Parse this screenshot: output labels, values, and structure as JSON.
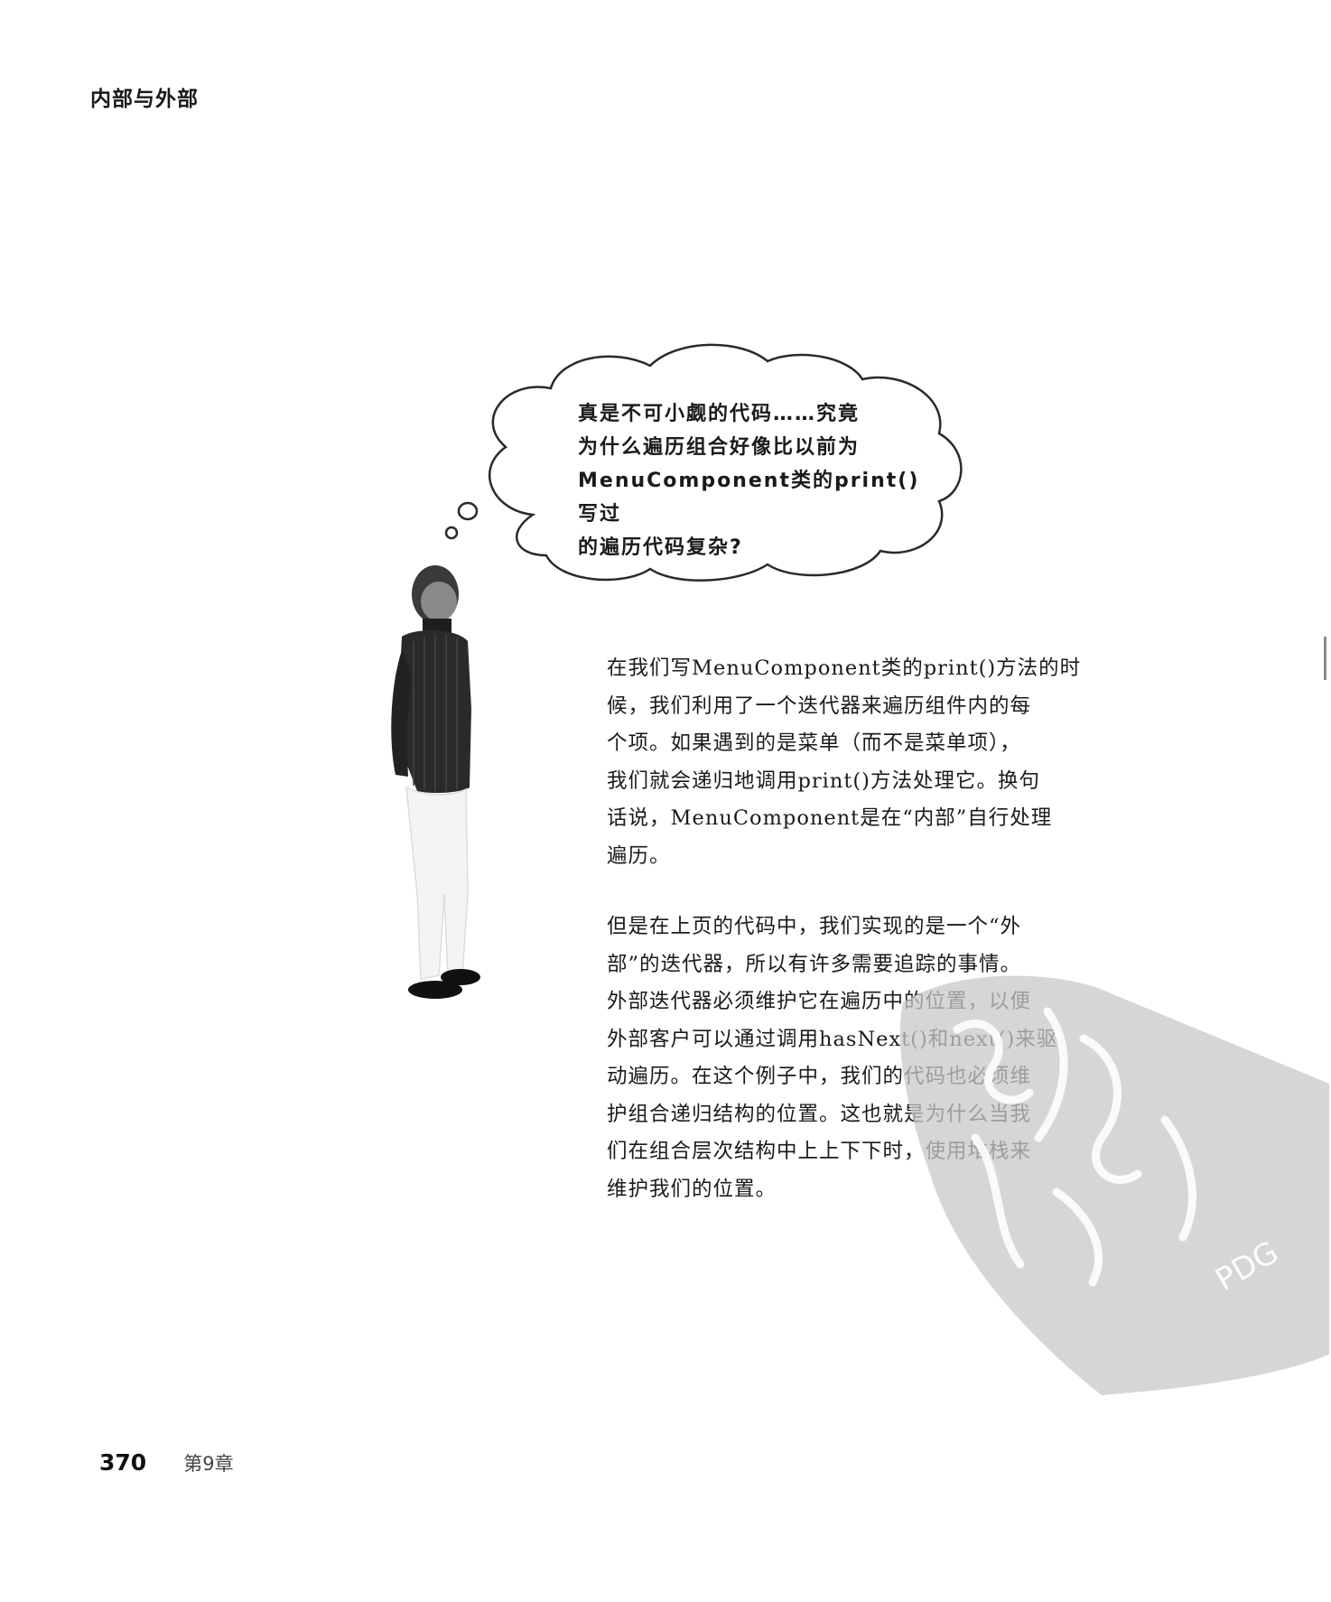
{
  "header": {
    "title": "内部与外部"
  },
  "thought_bubble": {
    "lines": [
      "真是不可小觑的代码……究竟",
      "为什么遍历组合好像比以前为",
      "MenuComponent类的print()写过",
      "的遍历代码复杂?"
    ]
  },
  "body": {
    "paragraph_1_lines": [
      "在我们写MenuComponent类的print()方法的时",
      "候，我们利用了一个迭代器来遍历组件内的每",
      "个项。如果遇到的是菜单（而不是菜单项），",
      "我们就会递归地调用print()方法处理它。换句",
      "话说，MenuComponent是在“内部”自行处理",
      "遍历。"
    ],
    "paragraph_2_lines": [
      "但是在上页的代码中，我们实现的是一个“外",
      "部”的迭代器，所以有许多需要追踪的事情。",
      "外部迭代器必须维护它在遍历中的位置，以便",
      "外部客户可以通过调用hasNext()和next()来驱",
      "动遍历。在这个例子中，我们的代码也必须维",
      "护组合递归结构的位置。这也就是为什么当我",
      "们在组合层次结构中上上下下时，使用堆栈来",
      "维护我们的位置。"
    ]
  },
  "watermark": {
    "text": "PDG"
  },
  "footer": {
    "page_number": "370",
    "chapter": "第9章"
  }
}
